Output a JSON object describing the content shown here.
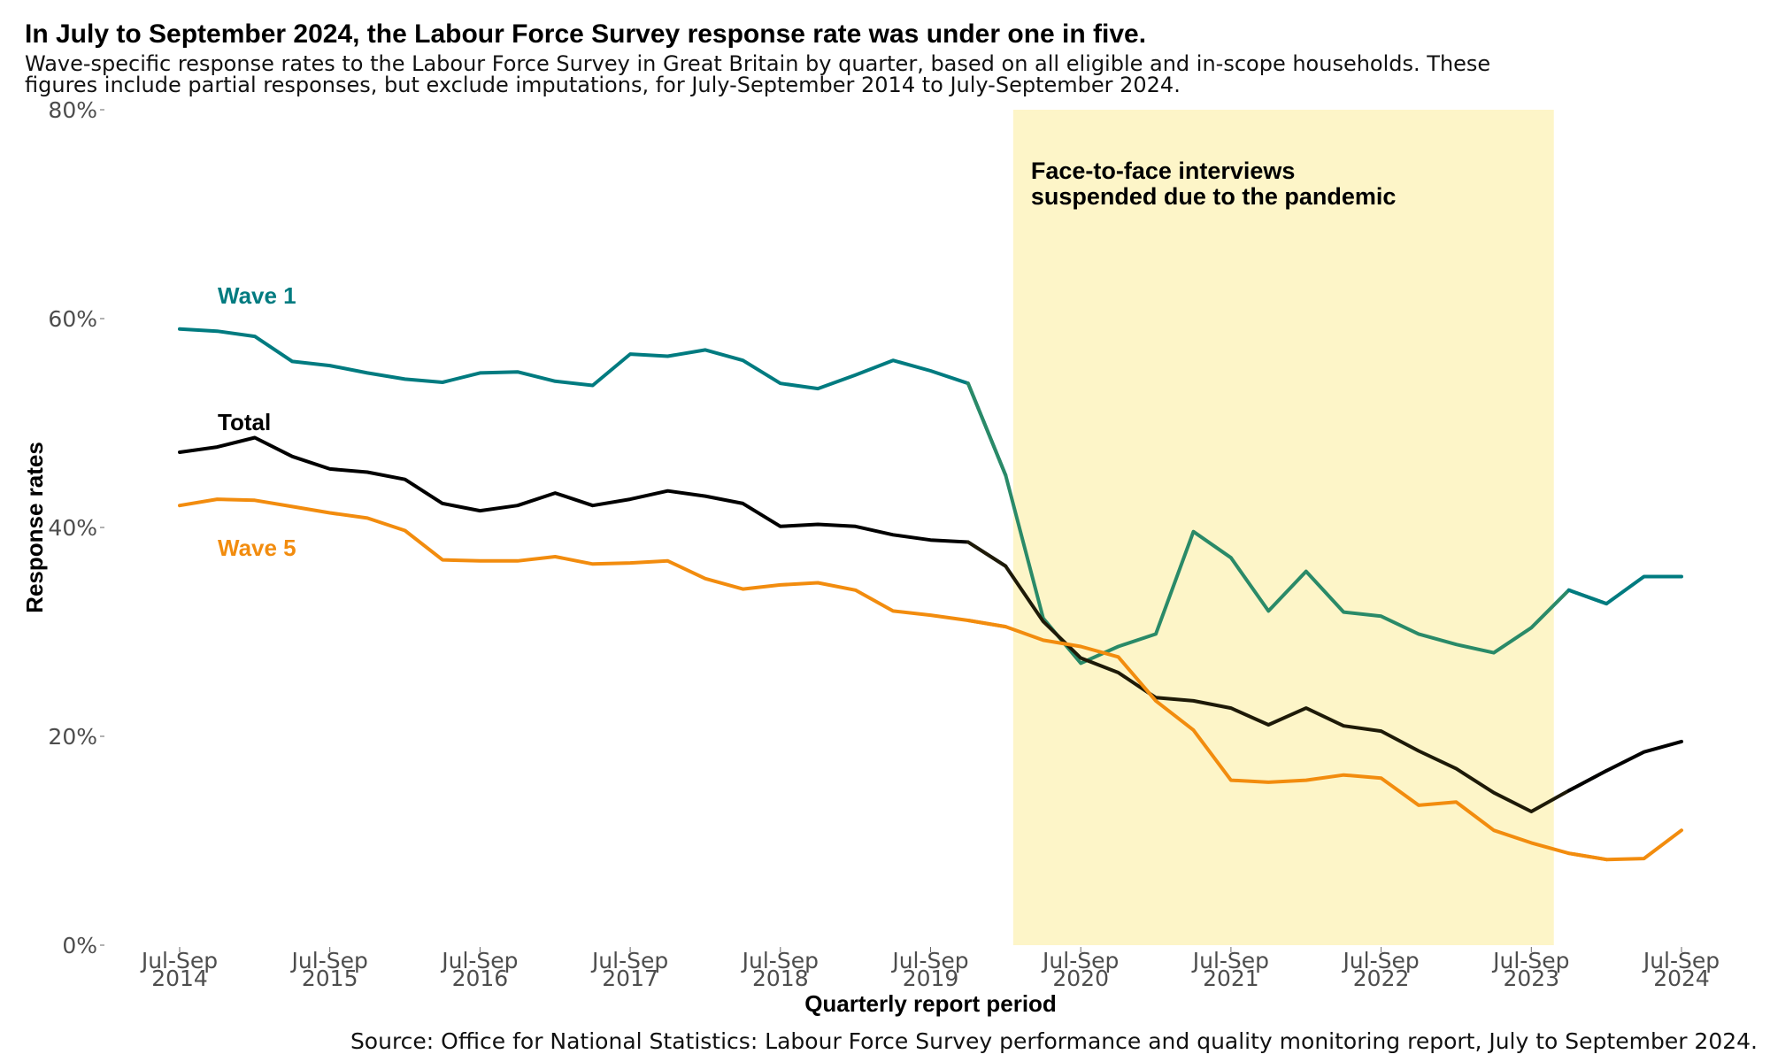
{
  "title": "In July to September 2024, the Labour Force Survey response rate was under one in five.",
  "subtitle": "Wave-specific response rates to the Labour Force Survey in Great Britain by quarter, based on all eligible and in-scope households. These figures include partial responses, but exclude imputations, for July-September 2014 to July-September 2024.",
  "source": "Source: Office for National Statistics: Labour Force Survey performance and quality monitoring report, July to September 2024.",
  "colors": {
    "wave1": "#007b80",
    "wave1_pandemic": "#2a8a68",
    "total": "#000000",
    "total_pandemic": "#1e1a08",
    "wave5": "#f28c0e",
    "shade": "#fdf5c8"
  },
  "chart_data": {
    "type": "line",
    "xlabel": "Quarterly report period",
    "ylabel": "Response rates",
    "ylim": [
      0,
      80
    ],
    "y_ticks": [
      0,
      20,
      40,
      60,
      80
    ],
    "y_tick_labels": [
      "0%",
      "20%",
      "40%",
      "60%",
      "80%"
    ],
    "x_ticks": [
      {
        "index": 0,
        "line1": "Jul-Sep",
        "line2": "2014"
      },
      {
        "index": 4,
        "line1": "Jul-Sep",
        "line2": "2015"
      },
      {
        "index": 8,
        "line1": "Jul-Sep",
        "line2": "2016"
      },
      {
        "index": 12,
        "line1": "Jul-Sep",
        "line2": "2017"
      },
      {
        "index": 16,
        "line1": "Jul-Sep",
        "line2": "2018"
      },
      {
        "index": 20,
        "line1": "Jul-Sep",
        "line2": "2019"
      },
      {
        "index": 24,
        "line1": "Jul-Sep",
        "line2": "2020"
      },
      {
        "index": 28,
        "line1": "Jul-Sep",
        "line2": "2021"
      },
      {
        "index": 32,
        "line1": "Jul-Sep",
        "line2": "2022"
      },
      {
        "index": 36,
        "line1": "Jul-Sep",
        "line2": "2023"
      },
      {
        "index": 40,
        "line1": "Jul-Sep",
        "line2": "2024"
      }
    ],
    "quarters_count": 41,
    "shaded_region": {
      "from_index": 22.2,
      "to_index": 36.6,
      "label_line1": "Face-to-face interviews",
      "label_line2": "suspended due to the pandemic"
    },
    "series": [
      {
        "name": "Wave 1",
        "key": "wave1",
        "values": [
          59.0,
          58.8,
          58.3,
          55.9,
          55.5,
          54.8,
          54.2,
          53.9,
          54.8,
          54.9,
          54.0,
          53.6,
          56.6,
          56.4,
          57.0,
          56.0,
          53.8,
          53.3,
          54.6,
          56.0,
          55.0,
          53.8,
          45.0,
          31.3,
          27.0,
          28.6,
          29.8,
          39.6,
          37.1,
          32.0,
          35.8,
          31.9,
          31.5,
          29.8,
          28.8,
          28.0,
          30.4,
          34.0,
          32.7,
          35.3,
          35.3
        ]
      },
      {
        "name": "Total",
        "key": "total",
        "values": [
          47.2,
          47.7,
          48.6,
          46.8,
          45.6,
          45.3,
          44.6,
          42.3,
          41.6,
          42.1,
          43.3,
          42.1,
          42.7,
          43.5,
          43.0,
          42.3,
          40.1,
          40.3,
          40.1,
          39.3,
          38.8,
          38.6,
          36.3,
          31.0,
          27.5,
          26.1,
          23.7,
          23.4,
          22.7,
          21.1,
          22.7,
          21.0,
          20.5,
          18.6,
          16.9,
          14.6,
          12.8,
          14.8,
          16.7,
          18.5,
          19.5
        ]
      },
      {
        "name": "Wave 5",
        "key": "wave5",
        "values": [
          42.1,
          42.7,
          42.6,
          42.0,
          41.4,
          40.9,
          39.7,
          36.9,
          36.8,
          36.8,
          37.2,
          36.5,
          36.6,
          36.8,
          35.1,
          34.1,
          34.5,
          34.7,
          34.0,
          32.0,
          31.6,
          31.1,
          30.5,
          29.2,
          28.6,
          27.6,
          23.4,
          20.6,
          15.8,
          15.6,
          15.8,
          16.3,
          16.0,
          13.4,
          13.7,
          11.0,
          9.8,
          8.8,
          8.2,
          8.3,
          11.0
        ]
      }
    ]
  }
}
